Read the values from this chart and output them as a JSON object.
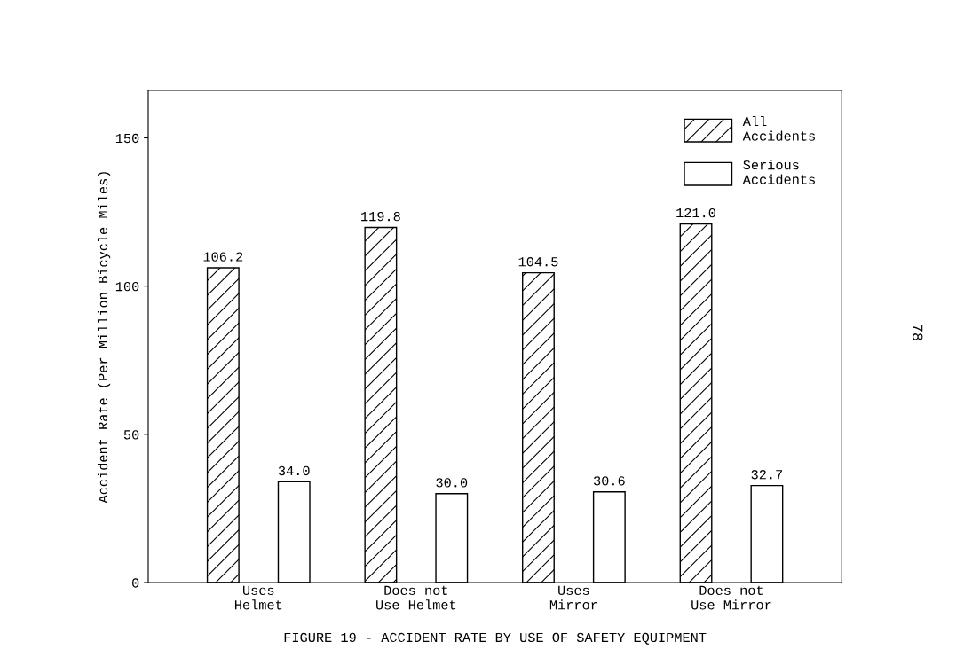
{
  "chart_data": {
    "type": "bar",
    "title": "FIGURE 19 - ACCIDENT RATE BY USE OF SAFETY EQUIPMENT",
    "ylabel": "Accident Rate (Per Million Bicycle Miles)",
    "categories": [
      "Uses\nHelmet",
      "Does not\nUse Helmet",
      "Uses\nMirror",
      "Does not\nUse Mirror"
    ],
    "series": [
      {
        "name": "All\nAccidents",
        "color": "#000000",
        "values": [
          106.2,
          119.8,
          104.5,
          121.0
        ],
        "value_labels": [
          "106.2",
          "119.8",
          "104.5",
          "121.0"
        ]
      },
      {
        "name": "Serious\nAccidents",
        "color": "#ffffff",
        "values": [
          34.0,
          30.0,
          30.6,
          32.7
        ],
        "value_labels": [
          "34.0",
          "30.0",
          "30.6",
          "32.7"
        ]
      }
    ],
    "ylim": [
      0,
      166
    ],
    "yticks": [
      0,
      50,
      100,
      150
    ],
    "grid": false,
    "legend": "top right",
    "annotations": [
      "78"
    ]
  }
}
